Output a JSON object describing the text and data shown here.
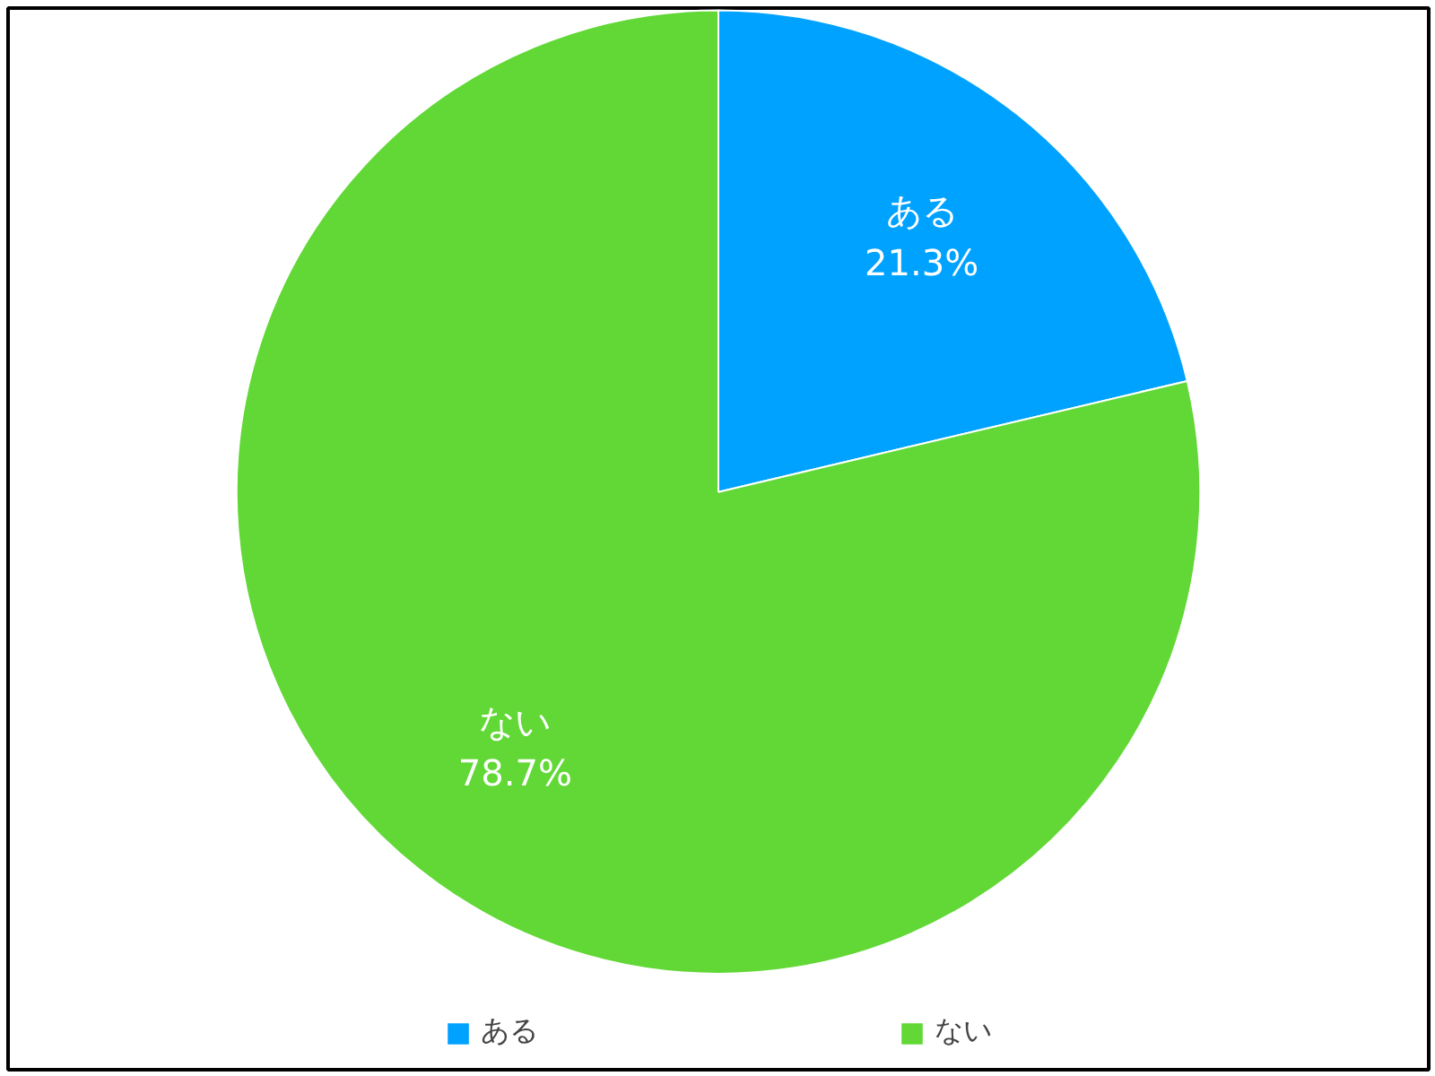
{
  "chart_data": {
    "type": "pie",
    "categories": [
      "ある",
      "ない"
    ],
    "values": [
      21.3,
      78.7
    ],
    "colors": [
      "#00a2ff",
      "#61d836"
    ],
    "value_labels": [
      "21.3%",
      "78.7%"
    ],
    "legend": "bottom"
  }
}
